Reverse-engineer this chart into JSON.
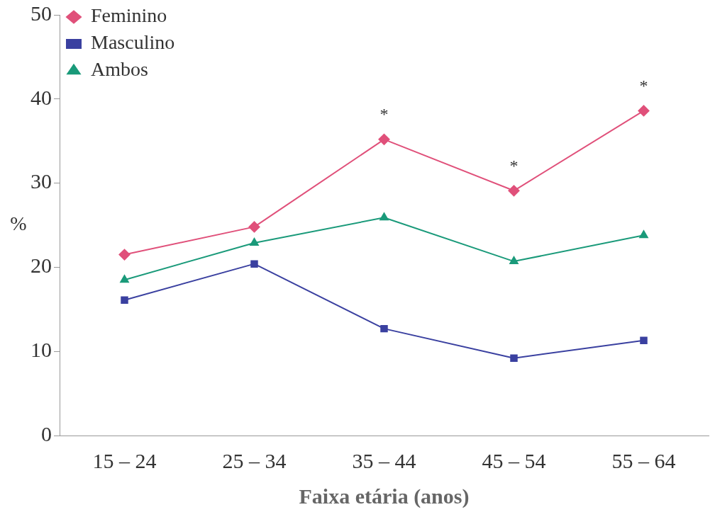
{
  "chart_data": {
    "type": "line",
    "xlabel": "Faixa etária (anos)",
    "ylabel": "%",
    "categories": [
      "15 – 24",
      "25 – 34",
      "35 – 44",
      "45 – 54",
      "55 – 64"
    ],
    "series": [
      {
        "name": "Feminino",
        "color": "#e0507a",
        "marker": "diamond",
        "values": [
          21.5,
          24.8,
          35.2,
          29.1,
          38.6
        ]
      },
      {
        "name": "Masculino",
        "color": "#3a40a0",
        "marker": "square",
        "values": [
          16.1,
          20.4,
          12.7,
          9.2,
          11.3
        ]
      },
      {
        "name": "Ambos",
        "color": "#1a9a7a",
        "marker": "triangle",
        "values": [
          18.5,
          22.9,
          25.9,
          20.7,
          23.8
        ]
      }
    ],
    "ylim": [
      0,
      50
    ],
    "yticks": [
      0,
      10,
      20,
      30,
      40,
      50
    ],
    "grid": false,
    "legend": "top left",
    "line_style": "solid",
    "annotations": [
      {
        "text": "*",
        "x": "35 – 44",
        "y": 35.2
      },
      {
        "text": "*",
        "x": "45 – 54",
        "y": 29.1
      },
      {
        "text": "*",
        "x": "55 – 64",
        "y": 38.6
      }
    ]
  }
}
